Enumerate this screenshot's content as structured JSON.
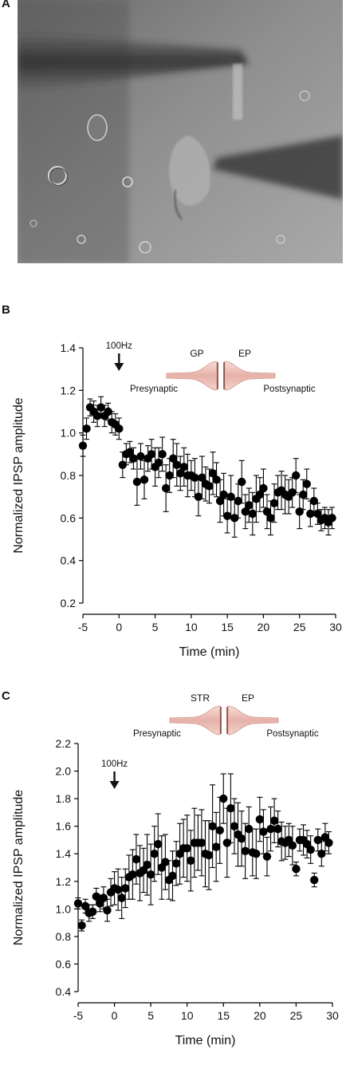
{
  "panels": {
    "a": {
      "letter": "A"
    },
    "b": {
      "letter": "B"
    },
    "c": {
      "letter": "C"
    }
  },
  "chart_data": [
    {
      "type": "scatter",
      "panel": "B",
      "xlabel": "Time (min)",
      "ylabel": "Normalized IPSP amplitude",
      "xlim": [
        -5,
        30
      ],
      "ylim": [
        0.2,
        1.4
      ],
      "xticks": [
        "-5",
        "0",
        "5",
        "10",
        "15",
        "20",
        "25",
        "30"
      ],
      "yticks": [
        "0.2",
        "0.4",
        "0.6",
        "0.8",
        "1.0",
        "1.2",
        "1.4"
      ],
      "stimulus": {
        "label": "100Hz",
        "x": 0
      },
      "synapse": {
        "pre": "GP",
        "post": "EP",
        "pre_label": "Presynaptic",
        "post_label": "Postsynaptic"
      },
      "grid": false,
      "marker_color": "#000000",
      "x": [
        -5.0,
        -4.5,
        -4.0,
        -3.5,
        -3.0,
        -2.5,
        -2.0,
        -1.5,
        -1.0,
        -0.5,
        0.0,
        0.5,
        1.0,
        1.5,
        2.0,
        2.5,
        3.0,
        3.5,
        4.0,
        4.5,
        5.0,
        5.5,
        6.0,
        6.5,
        7.0,
        7.5,
        8.0,
        8.5,
        9.0,
        9.5,
        10.0,
        10.5,
        11.0,
        11.5,
        12.0,
        12.5,
        13.0,
        13.5,
        14.0,
        14.5,
        15.0,
        15.5,
        16.0,
        16.5,
        17.0,
        17.5,
        18.0,
        18.5,
        19.0,
        19.5,
        20.0,
        20.5,
        21.0,
        21.5,
        22.0,
        22.5,
        23.0,
        23.5,
        24.0,
        24.5,
        25.0,
        25.5,
        26.0,
        26.5,
        27.0,
        27.5,
        28.0,
        28.5,
        29.0,
        29.5
      ],
      "y": [
        0.94,
        1.02,
        1.12,
        1.1,
        1.08,
        1.12,
        1.08,
        1.1,
        1.05,
        1.04,
        1.02,
        0.85,
        0.9,
        0.91,
        0.88,
        0.77,
        0.89,
        0.78,
        0.88,
        0.9,
        0.84,
        0.86,
        0.9,
        0.74,
        0.8,
        0.88,
        0.85,
        0.81,
        0.84,
        0.8,
        0.8,
        0.79,
        0.7,
        0.79,
        0.76,
        0.75,
        0.81,
        0.78,
        0.68,
        0.71,
        0.61,
        0.7,
        0.6,
        0.68,
        0.77,
        0.63,
        0.66,
        0.62,
        0.69,
        0.71,
        0.74,
        0.63,
        0.6,
        0.67,
        0.72,
        0.73,
        0.71,
        0.7,
        0.72,
        0.8,
        0.63,
        0.71,
        0.76,
        0.62,
        0.68,
        0.62,
        0.59,
        0.6,
        0.58,
        0.6
      ],
      "err": [
        0.05,
        0.05,
        0.04,
        0.05,
        0.05,
        0.05,
        0.05,
        0.04,
        0.05,
        0.05,
        0.05,
        0.06,
        0.05,
        0.05,
        0.05,
        0.11,
        0.06,
        0.09,
        0.06,
        0.07,
        0.09,
        0.07,
        0.08,
        0.11,
        0.08,
        0.09,
        0.1,
        0.08,
        0.09,
        0.1,
        0.07,
        0.09,
        0.09,
        0.1,
        0.08,
        0.08,
        0.1,
        0.08,
        0.1,
        0.1,
        0.08,
        0.1,
        0.09,
        0.08,
        0.1,
        0.08,
        0.08,
        0.1,
        0.11,
        0.08,
        0.09,
        0.08,
        0.08,
        0.09,
        0.08,
        0.09,
        0.09,
        0.08,
        0.07,
        0.08,
        0.08,
        0.07,
        0.07,
        0.06,
        0.06,
        0.05,
        0.05,
        0.05,
        0.06,
        0.05
      ]
    },
    {
      "type": "scatter",
      "panel": "C",
      "xlabel": "Time (min)",
      "ylabel": "Normalized IPSP amplitude",
      "xlim": [
        -5,
        30
      ],
      "ylim": [
        0.4,
        2.2
      ],
      "xticks": [
        "-5",
        "0",
        "5",
        "10",
        "15",
        "20",
        "25",
        "30"
      ],
      "yticks": [
        "0.4",
        "0.6",
        "0.8",
        "1.0",
        "1.2",
        "1.4",
        "1.6",
        "1.8",
        "2.0",
        "2.2"
      ],
      "stimulus": {
        "label": "100Hz",
        "x": 0
      },
      "synapse": {
        "pre": "STR",
        "post": "EP",
        "pre_label": "Presynaptic",
        "post_label": "Postsynaptic"
      },
      "grid": false,
      "marker_color": "#000000",
      "x": [
        -5.0,
        -4.5,
        -4.0,
        -3.5,
        -3.0,
        -2.5,
        -2.0,
        -1.5,
        -1.0,
        -0.5,
        0.0,
        0.5,
        1.0,
        1.5,
        2.0,
        2.5,
        3.0,
        3.5,
        4.0,
        4.5,
        5.0,
        5.5,
        6.0,
        6.5,
        7.0,
        7.5,
        8.0,
        8.5,
        9.0,
        9.5,
        10.0,
        10.5,
        11.0,
        11.5,
        12.0,
        12.5,
        13.0,
        13.5,
        14.0,
        14.5,
        15.0,
        15.5,
        16.0,
        16.5,
        17.0,
        17.5,
        18.0,
        18.5,
        19.0,
        19.5,
        20.0,
        20.5,
        21.0,
        21.5,
        22.0,
        22.5,
        23.0,
        23.5,
        24.0,
        24.5,
        25.0,
        25.5,
        26.0,
        26.5,
        27.0,
        27.5,
        28.0,
        28.5,
        29.0,
        29.5
      ],
      "y": [
        1.04,
        0.88,
        1.02,
        0.97,
        0.98,
        1.09,
        1.04,
        1.08,
        0.99,
        1.12,
        1.15,
        1.14,
        1.08,
        1.15,
        1.23,
        1.25,
        1.36,
        1.26,
        1.28,
        1.32,
        1.25,
        1.4,
        1.47,
        1.3,
        1.34,
        1.21,
        1.24,
        1.33,
        1.4,
        1.44,
        1.44,
        1.35,
        1.48,
        1.48,
        1.48,
        1.4,
        1.39,
        1.6,
        1.45,
        1.57,
        1.8,
        1.48,
        1.73,
        1.6,
        1.54,
        1.51,
        1.42,
        1.58,
        1.41,
        1.4,
        1.65,
        1.56,
        1.38,
        1.58,
        1.64,
        1.58,
        1.49,
        1.48,
        1.5,
        1.46,
        1.29,
        1.5,
        1.5,
        1.47,
        1.43,
        1.21,
        1.5,
        1.4,
        1.52,
        1.48
      ],
      "err": [
        0.04,
        0.04,
        0.05,
        0.06,
        0.05,
        0.06,
        0.06,
        0.08,
        0.08,
        0.1,
        0.12,
        0.15,
        0.15,
        0.14,
        0.16,
        0.18,
        0.18,
        0.2,
        0.16,
        0.22,
        0.22,
        0.2,
        0.22,
        0.23,
        0.2,
        0.14,
        0.18,
        0.16,
        0.22,
        0.21,
        0.24,
        0.22,
        0.25,
        0.2,
        0.24,
        0.24,
        0.25,
        0.3,
        0.25,
        0.24,
        0.18,
        0.25,
        0.25,
        0.2,
        0.23,
        0.2,
        0.2,
        0.16,
        0.17,
        0.18,
        0.16,
        0.16,
        0.14,
        0.16,
        0.16,
        0.13,
        0.14,
        0.12,
        0.12,
        0.14,
        0.05,
        0.08,
        0.11,
        0.1,
        0.1,
        0.05,
        0.08,
        0.09,
        0.1,
        0.08
      ]
    }
  ]
}
